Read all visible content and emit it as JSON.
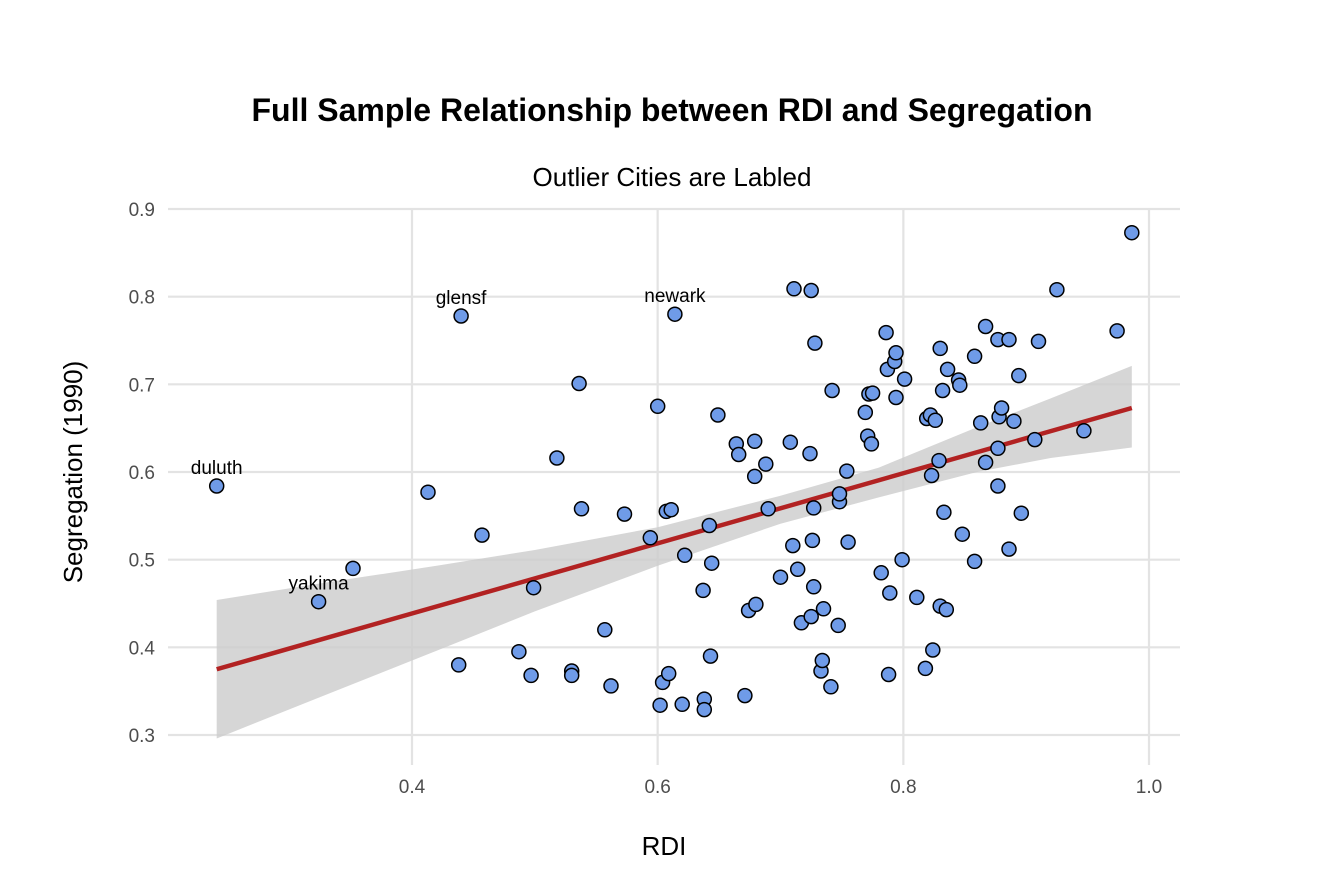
{
  "chart_data": {
    "type": "scatter",
    "title": "Full Sample Relationship between RDI and Segregation",
    "subtitle": "Outlier Cities are Labled",
    "xlabel": "RDI",
    "ylabel": "Segregation (1990)",
    "xlim": [
      0.22,
      1.02
    ],
    "ylim": [
      0.28,
      0.92
    ],
    "xticks": [
      0.4,
      0.6,
      0.8,
      1.0
    ],
    "xtick_labels": [
      "0.4",
      "0.6",
      "0.8",
      "1.0"
    ],
    "yticks": [
      0.3,
      0.4,
      0.5,
      0.6,
      0.7,
      0.8,
      0.9
    ],
    "ytick_labels": [
      "0.3",
      "0.4",
      "0.5",
      "0.6",
      "0.7",
      "0.8",
      "0.9"
    ],
    "grid": true,
    "colors": {
      "point_fill": "#6f9be8",
      "point_stroke": "#000000",
      "line": "#b22222",
      "band": "#cccccc"
    },
    "points": [
      [
        0.241,
        0.584
      ],
      [
        0.324,
        0.452
      ],
      [
        0.352,
        0.49
      ],
      [
        0.413,
        0.577
      ],
      [
        0.438,
        0.38
      ],
      [
        0.44,
        0.778
      ],
      [
        0.457,
        0.528
      ],
      [
        0.487,
        0.395
      ],
      [
        0.497,
        0.368
      ],
      [
        0.499,
        0.468
      ],
      [
        0.518,
        0.616
      ],
      [
        0.53,
        0.373
      ],
      [
        0.53,
        0.368
      ],
      [
        0.536,
        0.701
      ],
      [
        0.538,
        0.558
      ],
      [
        0.557,
        0.42
      ],
      [
        0.562,
        0.356
      ],
      [
        0.573,
        0.552
      ],
      [
        0.594,
        0.525
      ],
      [
        0.6,
        0.675
      ],
      [
        0.602,
        0.334
      ],
      [
        0.604,
        0.36
      ],
      [
        0.607,
        0.555
      ],
      [
        0.609,
        0.37
      ],
      [
        0.611,
        0.557
      ],
      [
        0.614,
        0.78
      ],
      [
        0.62,
        0.335
      ],
      [
        0.622,
        0.505
      ],
      [
        0.637,
        0.465
      ],
      [
        0.638,
        0.341
      ],
      [
        0.638,
        0.329
      ],
      [
        0.642,
        0.539
      ],
      [
        0.643,
        0.39
      ],
      [
        0.644,
        0.496
      ],
      [
        0.649,
        0.665
      ],
      [
        0.664,
        0.632
      ],
      [
        0.666,
        0.62
      ],
      [
        0.671,
        0.345
      ],
      [
        0.674,
        0.442
      ],
      [
        0.679,
        0.635
      ],
      [
        0.679,
        0.595
      ],
      [
        0.68,
        0.449
      ],
      [
        0.688,
        0.609
      ],
      [
        0.69,
        0.558
      ],
      [
        0.7,
        0.48
      ],
      [
        0.708,
        0.634
      ],
      [
        0.71,
        0.516
      ],
      [
        0.711,
        0.809
      ],
      [
        0.714,
        0.489
      ],
      [
        0.717,
        0.428
      ],
      [
        0.724,
        0.621
      ],
      [
        0.725,
        0.435
      ],
      [
        0.725,
        0.807
      ],
      [
        0.726,
        0.522
      ],
      [
        0.727,
        0.469
      ],
      [
        0.727,
        0.559
      ],
      [
        0.728,
        0.747
      ],
      [
        0.733,
        0.373
      ],
      [
        0.734,
        0.385
      ],
      [
        0.735,
        0.444
      ],
      [
        0.741,
        0.355
      ],
      [
        0.742,
        0.693
      ],
      [
        0.747,
        0.425
      ],
      [
        0.748,
        0.566
      ],
      [
        0.748,
        0.575
      ],
      [
        0.754,
        0.601
      ],
      [
        0.755,
        0.52
      ],
      [
        0.769,
        0.668
      ],
      [
        0.771,
        0.641
      ],
      [
        0.772,
        0.689
      ],
      [
        0.774,
        0.632
      ],
      [
        0.775,
        0.69
      ],
      [
        0.782,
        0.485
      ],
      [
        0.786,
        0.759
      ],
      [
        0.787,
        0.717
      ],
      [
        0.788,
        0.369
      ],
      [
        0.789,
        0.462
      ],
      [
        0.793,
        0.726
      ],
      [
        0.794,
        0.736
      ],
      [
        0.794,
        0.685
      ],
      [
        0.799,
        0.5
      ],
      [
        0.801,
        0.706
      ],
      [
        0.811,
        0.457
      ],
      [
        0.818,
        0.376
      ],
      [
        0.819,
        0.661
      ],
      [
        0.822,
        0.665
      ],
      [
        0.823,
        0.596
      ],
      [
        0.824,
        0.397
      ],
      [
        0.826,
        0.659
      ],
      [
        0.829,
        0.613
      ],
      [
        0.83,
        0.447
      ],
      [
        0.83,
        0.741
      ],
      [
        0.832,
        0.693
      ],
      [
        0.833,
        0.554
      ],
      [
        0.835,
        0.443
      ],
      [
        0.836,
        0.717
      ],
      [
        0.845,
        0.705
      ],
      [
        0.846,
        0.699
      ],
      [
        0.848,
        0.529
      ],
      [
        0.858,
        0.732
      ],
      [
        0.858,
        0.498
      ],
      [
        0.863,
        0.656
      ],
      [
        0.867,
        0.766
      ],
      [
        0.867,
        0.611
      ],
      [
        0.877,
        0.584
      ],
      [
        0.877,
        0.627
      ],
      [
        0.877,
        0.751
      ],
      [
        0.878,
        0.663
      ],
      [
        0.88,
        0.673
      ],
      [
        0.886,
        0.512
      ],
      [
        0.886,
        0.751
      ],
      [
        0.89,
        0.658
      ],
      [
        0.894,
        0.71
      ],
      [
        0.896,
        0.553
      ],
      [
        0.907,
        0.637
      ],
      [
        0.91,
        0.749
      ],
      [
        0.925,
        0.808
      ],
      [
        0.947,
        0.647
      ],
      [
        0.974,
        0.761
      ],
      [
        0.986,
        0.873
      ]
    ],
    "labels": [
      {
        "text": "duluth",
        "x": 0.241,
        "y": 0.584
      },
      {
        "text": "yakima",
        "x": 0.324,
        "y": 0.452
      },
      {
        "text": "glensf",
        "x": 0.44,
        "y": 0.778
      },
      {
        "text": "newark",
        "x": 0.614,
        "y": 0.78
      }
    ],
    "fit_line": {
      "x": [
        0.241,
        0.986
      ],
      "y": [
        0.375,
        0.673
      ]
    },
    "confidence_band": {
      "x": [
        0.241,
        0.33,
        0.42,
        0.5,
        0.6,
        0.7,
        0.78,
        0.86,
        0.92,
        0.986
      ],
      "lower": [
        0.296,
        0.346,
        0.396,
        0.441,
        0.493,
        0.541,
        0.571,
        0.6,
        0.616,
        0.628
      ],
      "upper": [
        0.454,
        0.474,
        0.493,
        0.511,
        0.537,
        0.573,
        0.605,
        0.651,
        0.684,
        0.721
      ]
    }
  }
}
